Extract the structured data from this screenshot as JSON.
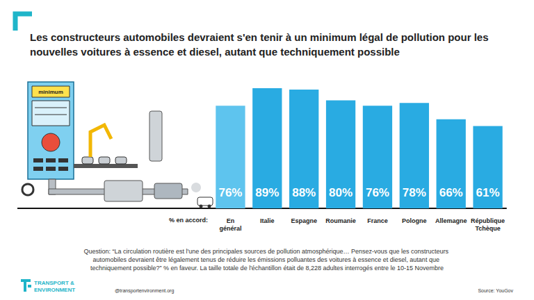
{
  "chart_data": {
    "type": "bar",
    "title": "Les constructeurs automobiles devraient s'en tenir à un minimum légal de pollution pour les nouvelles voitures à essence et diesel, autant que techniquement possible",
    "xlabel": "% en accord:",
    "categories": [
      "En général",
      "Italie",
      "Espagne",
      "Roumanie",
      "France",
      "Pologne",
      "Allemagne",
      "République Tchèque"
    ],
    "values": [
      76,
      89,
      88,
      80,
      76,
      78,
      66,
      61
    ],
    "value_labels": [
      "76%",
      "89%",
      "88%",
      "80%",
      "76%",
      "78%",
      "66%",
      "61%"
    ],
    "colors": [
      "#5ec4ee",
      "#29abe2",
      "#29abe2",
      "#29abe2",
      "#29abe2",
      "#29abe2",
      "#29abe2",
      "#29abe2"
    ],
    "ylim": [
      0,
      90
    ],
    "yticks": [],
    "grid": false,
    "data_labels": true,
    "tick_labels": "x"
  },
  "illustration": {
    "label": "minimum"
  },
  "footer": {
    "question": "Question: “La circulation routière est l'une des principales sources de pollution atmosphérique… Pensez-vous que les constructeurs automobiles devraient être légalement tenus de réduire les émissions polluantes des voitures à essence et diesel, autant que techniquement possible?” % en faveur. La taille totale de l'échantillon était de 8,228 adultes interrogés entre le 10-15 Novembre",
    "logo": [
      "TRANSPORT &",
      "ENVIRONMENT"
    ],
    "website": "@transportenvironment.org",
    "source": "Source: YouGov"
  }
}
